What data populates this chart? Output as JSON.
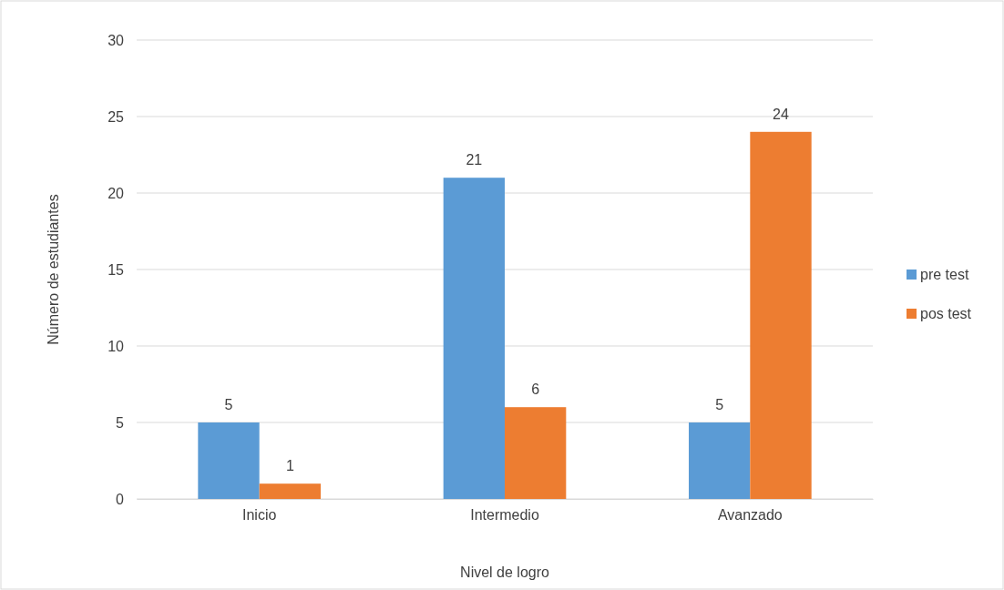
{
  "chart_data": {
    "type": "bar",
    "xlabel": "Nivel de logro",
    "ylabel": "Número de estudiantes",
    "categories": [
      "Inicio",
      "Intermedio",
      "Avanzado"
    ],
    "series": [
      {
        "name": "pre test",
        "color": "#5b9bd5",
        "values": [
          5,
          21,
          5
        ]
      },
      {
        "name": "pos test",
        "color": "#ed7d31",
        "values": [
          1,
          6,
          24
        ]
      }
    ],
    "ylim": [
      0,
      30
    ],
    "yticks": [
      0,
      5,
      10,
      15,
      20,
      25,
      30
    ],
    "grid": "y",
    "legend": "right",
    "data_labels": true
  }
}
